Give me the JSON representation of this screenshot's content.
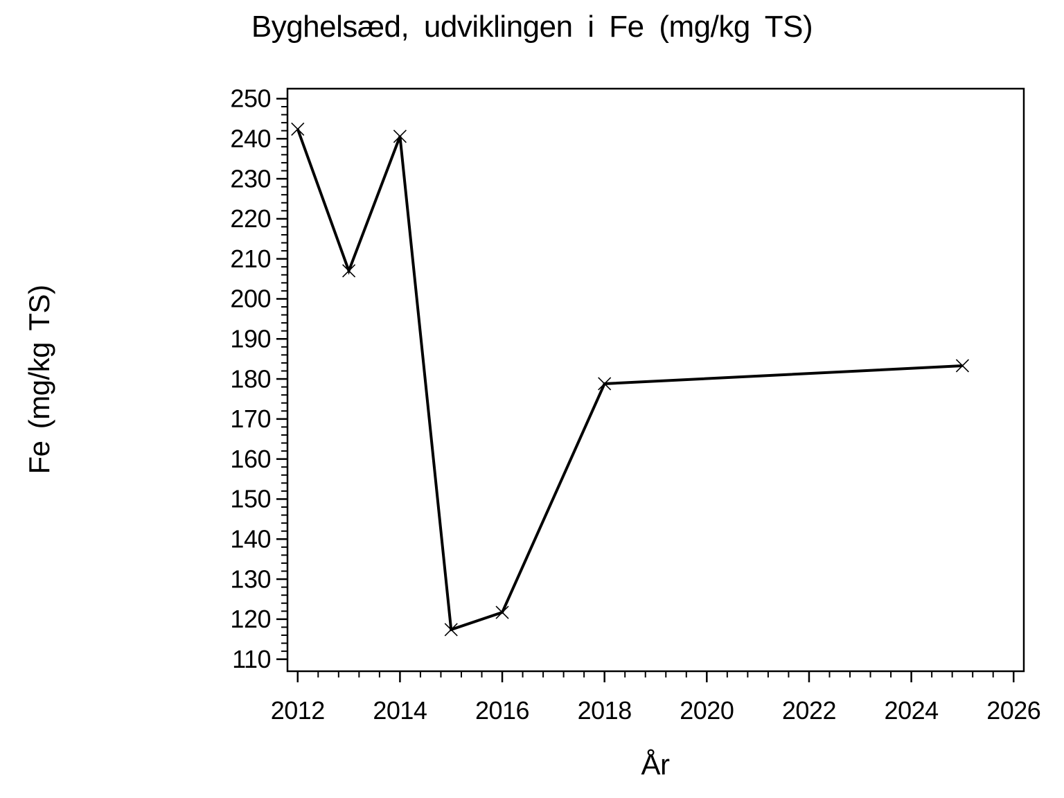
{
  "figure": {
    "background_color": "#ffffff",
    "ink_color": "#000000"
  },
  "chart_data": {
    "type": "line",
    "title": "Byghelsæd, udviklingen i Fe (mg/kg TS)",
    "xlabel": "År",
    "ylabel": "Fe (mg/kg TS)",
    "series": [
      {
        "name": "Fe",
        "x": [
          2012,
          2013,
          2014,
          2015,
          2016,
          2018,
          2025
        ],
        "y": [
          242.4,
          207.0,
          240.6,
          117.4,
          121.7,
          178.8,
          183.3
        ]
      }
    ],
    "x_ticks": [
      2012,
      2014,
      2016,
      2018,
      2020,
      2022,
      2024,
      2026
    ],
    "y_ticks": [
      110,
      120,
      130,
      140,
      150,
      160,
      170,
      180,
      190,
      200,
      210,
      220,
      230,
      240,
      250
    ],
    "xlim": [
      2011.8,
      2026.2
    ],
    "ylim": [
      107.0,
      252.5
    ],
    "x_minor_step": 0.4,
    "y_minor_step": 2,
    "grid": false,
    "legend_position": "none",
    "marker": "x",
    "line_color": "#000000",
    "marker_color": "#000000",
    "axis_color": "#000000"
  }
}
